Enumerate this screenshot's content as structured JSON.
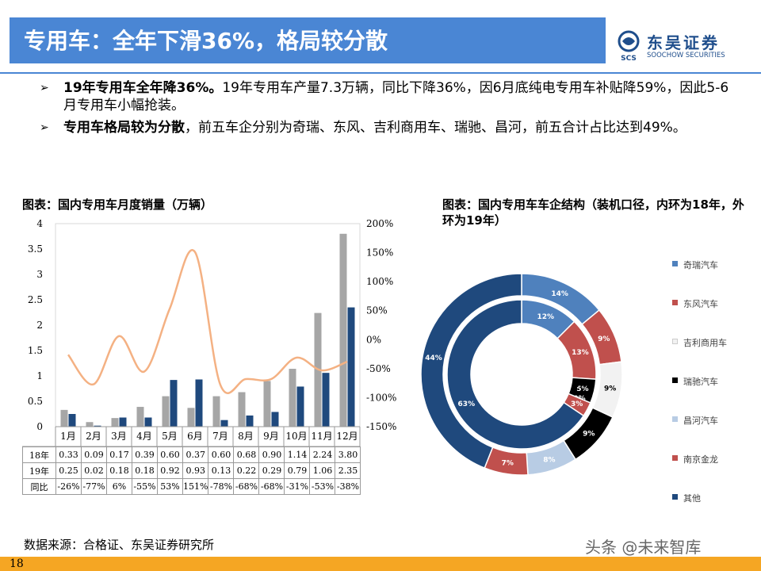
{
  "header": {
    "title": "专用车：全年下滑36%，格局较分散"
  },
  "logo": {
    "cn": "东吴证券",
    "en": "SOOCHOW SECURITIES",
    "mark": "SCS"
  },
  "bullets": [
    {
      "bold": "19年专用车全年降36%。",
      "text": "19年专用车产量7.3万辆，同比下降36%，因6月底纯电专用车补贴降59%，因此5-6月专用车小幅抢装。"
    },
    {
      "bold": "专用车格局较为分散",
      "text": "，前五车企分别为奇瑞、东风、吉利商用车、瑞驰、昌河，前五合计占比达到49%。"
    }
  ],
  "left_chart_title": "图表：国内专用车月度销量（万辆）",
  "right_chart_title": "图表：国内专用车车企结构（装机口径，内环为18年，外环为19年）",
  "source": "数据来源：合格证、东吴证券研究所",
  "watermark": "头条 @未来智库",
  "page_number": "18",
  "table": {
    "rows": [
      {
        "label": "18年",
        "values": [
          "0.33",
          "0.09",
          "0.17",
          "0.39",
          "0.60",
          "0.37",
          "0.60",
          "0.68",
          "0.90",
          "1.14",
          "2.24",
          "3.80"
        ]
      },
      {
        "label": "19年",
        "values": [
          "0.25",
          "0.02",
          "0.18",
          "0.18",
          "0.92",
          "0.93",
          "0.13",
          "0.22",
          "0.29",
          "0.79",
          "1.06",
          "2.35"
        ]
      },
      {
        "label": "同比",
        "values": [
          "-26%",
          "-77%",
          "6%",
          "-55%",
          "53%",
          "151%",
          "-78%",
          "-68%",
          "-68%",
          "-31%",
          "-53%",
          "-38%"
        ]
      }
    ]
  },
  "chart_data": [
    {
      "type": "bar",
      "categories": [
        "1月",
        "2月",
        "3月",
        "4月",
        "5月",
        "6月",
        "7月",
        "8月",
        "9月",
        "10月",
        "11月",
        "12月"
      ],
      "series": [
        {
          "name": "18年",
          "values": [
            0.33,
            0.09,
            0.17,
            0.39,
            0.6,
            0.37,
            0.6,
            0.68,
            0.9,
            1.14,
            2.24,
            3.8
          ],
          "color": "#a6a6a6"
        },
        {
          "name": "19年",
          "values": [
            0.25,
            0.02,
            0.18,
            0.18,
            0.92,
            0.93,
            0.13,
            0.22,
            0.29,
            0.79,
            1.06,
            2.35
          ],
          "color": "#1f497d"
        },
        {
          "name": "同比",
          "type": "line",
          "axis": "right",
          "values": [
            -26,
            -77,
            6,
            -55,
            53,
            151,
            -78,
            -68,
            -68,
            -31,
            -53,
            -38
          ],
          "color": "#f4b183"
        }
      ],
      "ylim": [
        0,
        4
      ],
      "yticks": [
        "0",
        "0.5",
        "1",
        "1.5",
        "2",
        "2.5",
        "3",
        "3.5",
        "4"
      ],
      "y2lim": [
        -150,
        200
      ],
      "y2ticks": [
        "-150%",
        "-100%",
        "-50%",
        "0%",
        "50%",
        "100%",
        "150%",
        "200%"
      ],
      "grid": false,
      "legend": "none"
    },
    {
      "type": "pie",
      "subtype": "donut",
      "categories": [
        "奇瑞汽车",
        "东风汽车",
        "吉利商用车",
        "瑞驰汽车",
        "昌河汽车",
        "南京金龙",
        "其他"
      ],
      "colors": [
        "#4f81bd",
        "#c0504d",
        "#f2f2f2",
        "#000000",
        "#b8cce4",
        "#c0504d",
        "#1f497d"
      ],
      "inner_ring_18": {
        "values": [
          12,
          13,
          0,
          5,
          0,
          3,
          63
        ],
        "labels": [
          "12%",
          "13%",
          "",
          "5%",
          "0%",
          "3%",
          "63%"
        ]
      },
      "outer_ring_19": {
        "values": [
          14,
          9,
          9,
          9,
          8,
          7,
          44
        ],
        "labels": [
          "14%",
          "9%",
          "9%",
          "9%",
          "8%",
          "7%",
          "44%"
        ]
      },
      "extra_label": "4%",
      "legend": "right"
    }
  ]
}
